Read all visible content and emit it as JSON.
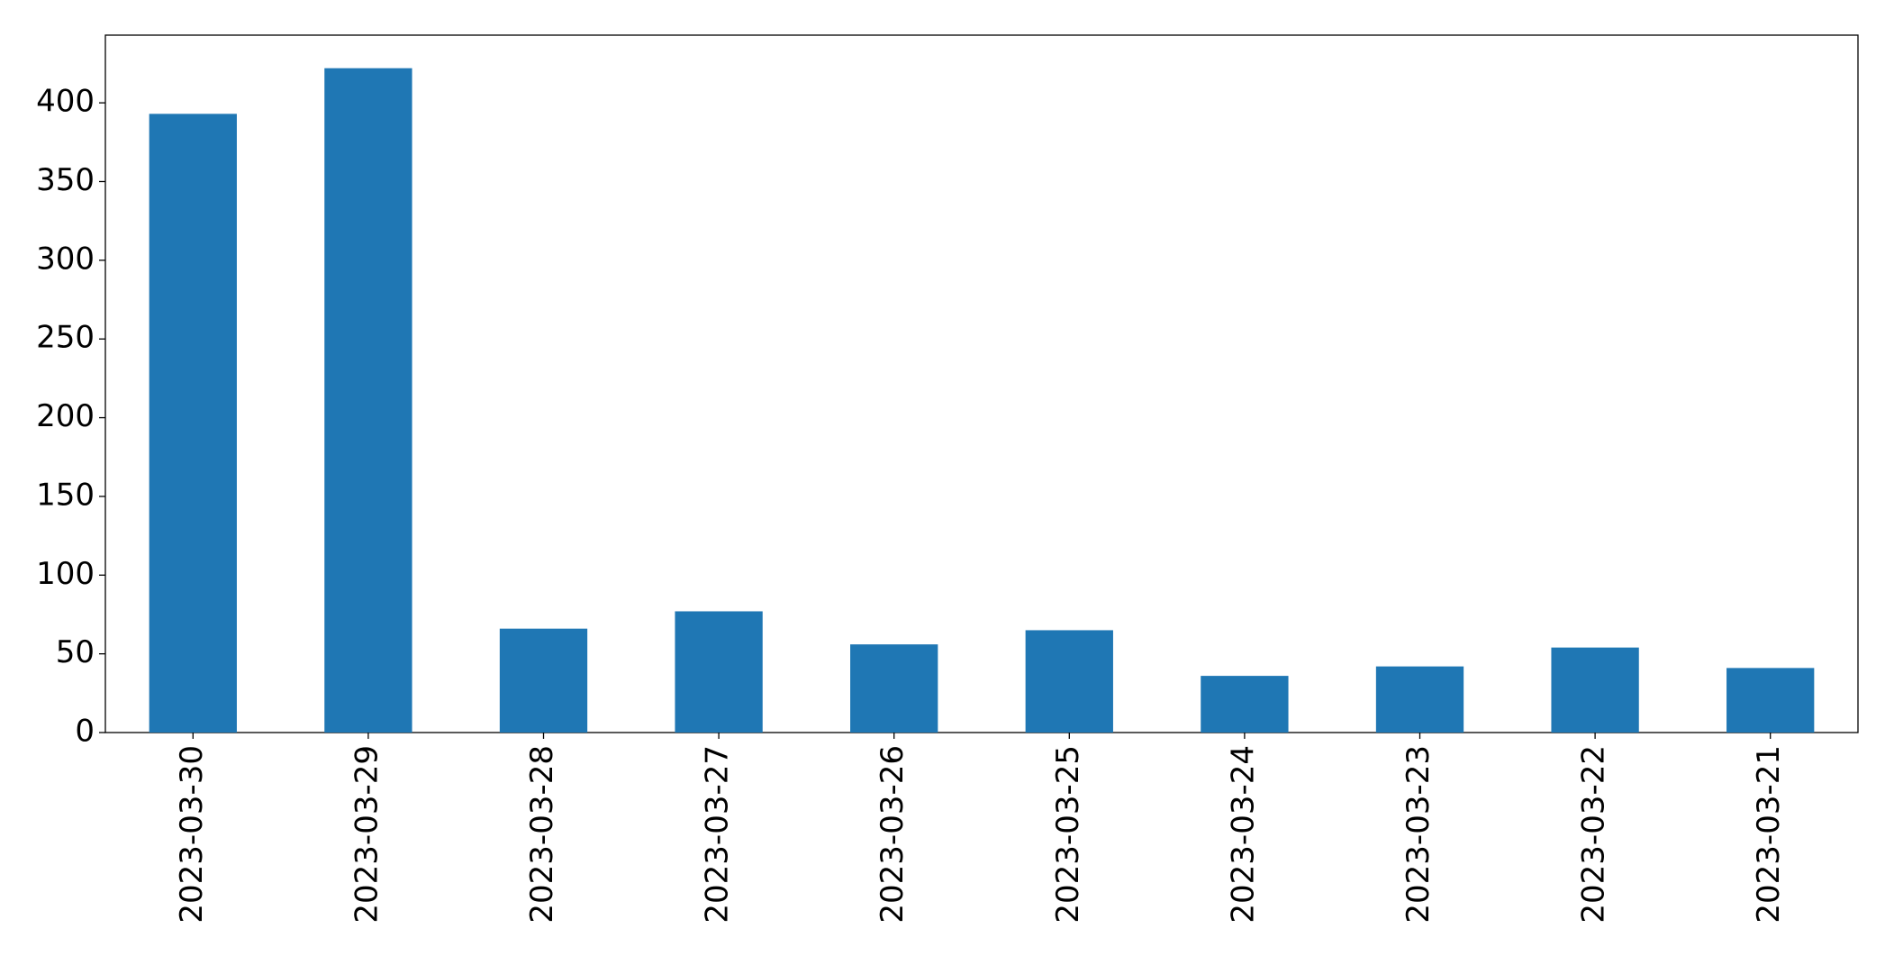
{
  "chart_data": {
    "type": "bar",
    "categories": [
      "2023-03-30",
      "2023-03-29",
      "2023-03-28",
      "2023-03-27",
      "2023-03-26",
      "2023-03-25",
      "2023-03-24",
      "2023-03-23",
      "2023-03-22",
      "2023-03-21"
    ],
    "values": [
      393,
      422,
      66,
      77,
      56,
      65,
      36,
      42,
      54,
      41
    ],
    "color": "#1f77b4",
    "ylim": [
      0,
      443
    ],
    "yticks": [
      0,
      50,
      100,
      150,
      200,
      250,
      300,
      350,
      400
    ],
    "grid": false
  }
}
